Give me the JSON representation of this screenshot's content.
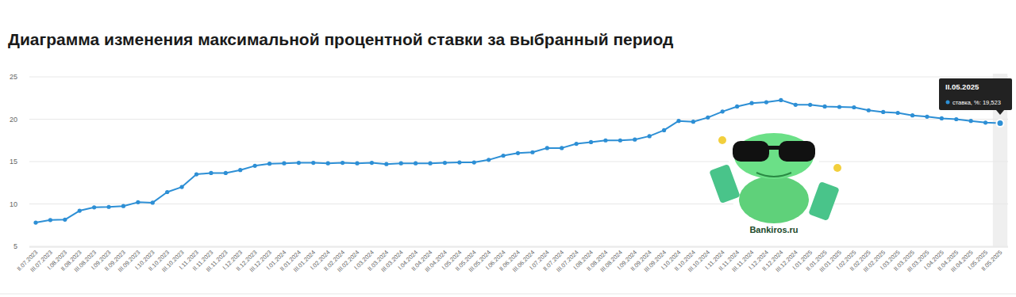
{
  "chart_data": {
    "type": "line",
    "title": "Диаграмма изменения максимальной процентной ставки за выбранный период",
    "categories": [
      "II.07.2023",
      "III.07.2023",
      "I.08.2023",
      "II.08.2023",
      "III.08.2023",
      "I.09.2023",
      "II.09.2023",
      "III.09.2023",
      "I.10.2023",
      "II.10.2023",
      "III.10.2023",
      "I.11.2023",
      "II.11.2023",
      "III.11.2023",
      "I.12.2023",
      "II.12.2023",
      "III.12.2023",
      "I.01.2024",
      "II.01.2024",
      "III.01.2024",
      "I.02.2024",
      "II.02.2024",
      "III.02.2024",
      "I.03.2024",
      "II.03.2024",
      "III.03.2024",
      "I.04.2024",
      "II.04.2024",
      "III.04.2024",
      "I.05.2024",
      "II.05.2024",
      "III.05.2024",
      "I.06.2024",
      "II.06.2024",
      "III.06.2024",
      "I.07.2024",
      "II.07.2024",
      "III.07.2024",
      "I.08.2024",
      "II.08.2024",
      "III.08.2024",
      "I.09.2024",
      "II.09.2024",
      "III.09.2024",
      "I.10.2024",
      "II.10.2024",
      "III.10.2024",
      "I.11.2024",
      "II.11.2024",
      "III.11.2024",
      "I.12.2024",
      "II.12.2024",
      "III.12.2024",
      "I.01.2025",
      "II.01.2025",
      "III.01.2025",
      "I.02.2025",
      "II.02.2025",
      "III.02.2025",
      "I.03.2025",
      "II.03.2025",
      "III.03.2025",
      "I.04.2025",
      "II.04.2025",
      "III.04.2025",
      "I.05.2025",
      "II.05.2025"
    ],
    "values": [
      7.8,
      8.1,
      8.15,
      9.2,
      9.6,
      9.65,
      9.75,
      10.2,
      10.15,
      11.4,
      12.0,
      13.5,
      13.65,
      13.65,
      14.0,
      14.5,
      14.75,
      14.8,
      14.85,
      14.85,
      14.8,
      14.85,
      14.8,
      14.85,
      14.7,
      14.8,
      14.8,
      14.8,
      14.85,
      14.9,
      14.9,
      15.2,
      15.7,
      16.0,
      16.1,
      16.6,
      16.6,
      17.1,
      17.3,
      17.5,
      17.5,
      17.6,
      18.0,
      18.7,
      19.8,
      19.7,
      20.2,
      20.9,
      21.5,
      21.9,
      22.0,
      22.25,
      21.7,
      21.7,
      21.5,
      21.45,
      21.4,
      21.05,
      20.85,
      20.75,
      20.45,
      20.3,
      20.1,
      20.0,
      19.8,
      19.6,
      19.523
    ],
    "color": "#2d8fd5",
    "marker": "circle",
    "ylim": [
      5,
      25
    ],
    "yticks": [
      5,
      10,
      15,
      20,
      25
    ],
    "grid": true,
    "tooltip": {
      "title": "II.05.2025",
      "text": "ставка, %: 19,523"
    },
    "watermark": "Bankiros.ru"
  }
}
